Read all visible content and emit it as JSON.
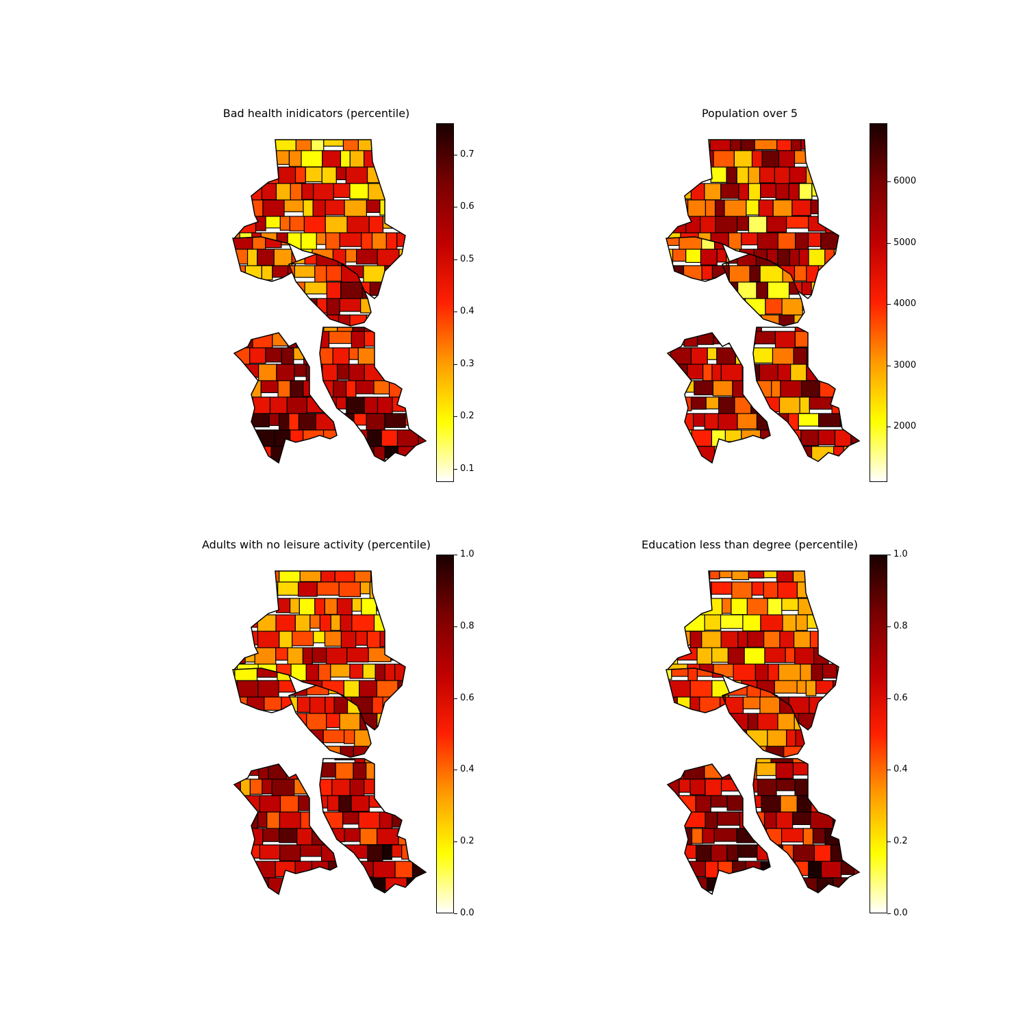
{
  "colormap": {
    "name": "hot_r",
    "stops": [
      "#ffffff",
      "#ffff00",
      "#ff9a00",
      "#ff2000",
      "#c00000",
      "#7a0000",
      "#1a0000"
    ]
  },
  "panels": [
    {
      "title": "Bad health inidicators (percentile)",
      "colorbar": {
        "min": 0.075,
        "max": 0.76,
        "ticks": [
          "0.1",
          "0.2",
          "0.3",
          "0.4",
          "0.5",
          "0.6",
          "0.7"
        ],
        "tick_values": [
          0.1,
          0.2,
          0.3,
          0.4,
          0.5,
          0.6,
          0.7
        ]
      },
      "seed": 11
    },
    {
      "title": "Population over 5",
      "colorbar": {
        "min": 1100,
        "max": 6950,
        "ticks": [
          "2000",
          "3000",
          "4000",
          "5000",
          "6000"
        ],
        "tick_values": [
          2000,
          3000,
          4000,
          5000,
          6000
        ]
      },
      "seed": 23
    },
    {
      "title": "Adults with no leisure activity (percentile)",
      "colorbar": {
        "min": 0.0,
        "max": 1.0,
        "ticks": [
          "0.0",
          "0.2",
          "0.4",
          "0.6",
          "0.8",
          "1.0"
        ],
        "tick_values": [
          0.0,
          0.2,
          0.4,
          0.6,
          0.8,
          1.0
        ]
      },
      "seed": 37
    },
    {
      "title": "Education less than degree (percentile)",
      "colorbar": {
        "min": 0.0,
        "max": 1.0,
        "ticks": [
          "0.0",
          "0.2",
          "0.4",
          "0.6",
          "0.8",
          "1.0"
        ],
        "tick_values": [
          0.0,
          0.2,
          0.4,
          0.6,
          0.8,
          1.0
        ]
      },
      "seed": 53
    }
  ]
}
